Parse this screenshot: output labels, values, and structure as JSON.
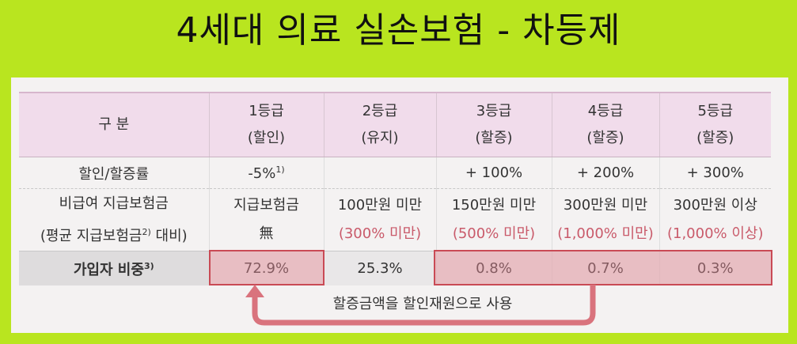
{
  "title": "4세대 의료 실손보험 - 차등제",
  "table": {
    "header": {
      "label": "구 분",
      "grades": [
        {
          "name": "1등급",
          "note": "(할인)"
        },
        {
          "name": "2등급",
          "note": "(유지)"
        },
        {
          "name": "3등급",
          "note": "(할증)"
        },
        {
          "name": "4등급",
          "note": "(할증)"
        },
        {
          "name": "5등급",
          "note": "(할증)"
        }
      ]
    },
    "rate_row": {
      "label": "할인/할증률",
      "values": [
        "-5%",
        "",
        "+ 100%",
        "+ 200%",
        "+ 300%"
      ],
      "first_footnote": "1)"
    },
    "claim_row": {
      "label_line1": "비급여 지급보험금",
      "label_line2": "(평균 지급보험금",
      "label_footnote": "2)",
      "label_line2_end": " 대비)",
      "values": [
        "지급보험금",
        "100만원 미만",
        "150만원 미만",
        "300만원 미만",
        "300만원 이상"
      ],
      "subvalues": [
        "無",
        "(300% 미만)",
        "(500% 미만)",
        "(1,000% 미만)",
        "(1,000% 이상)"
      ]
    },
    "share_row": {
      "label": "가입자 비중",
      "label_footnote": "3)",
      "values": [
        "72.9%",
        "25.3%",
        "0.8%",
        "0.7%",
        "0.3%"
      ]
    }
  },
  "annotation": "할증금액을 할인재원으로 사용",
  "colors": {
    "background": "#b9e51f",
    "header": "#f1dceb",
    "highlight_border": "#c94a55",
    "arrow": "#d9737d"
  }
}
